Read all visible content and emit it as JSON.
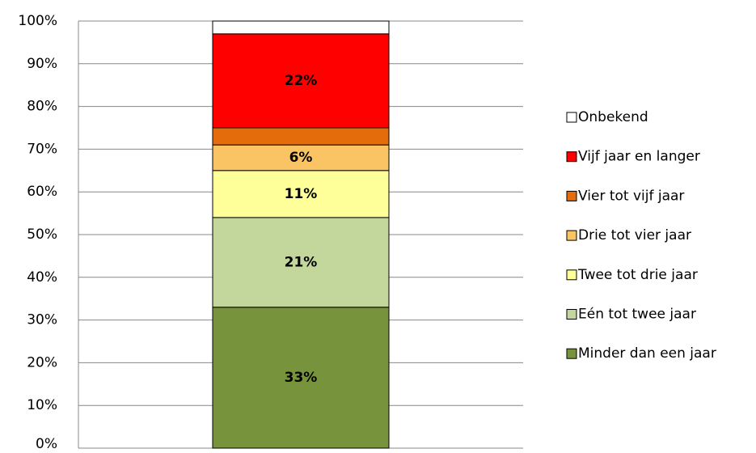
{
  "chart_data": {
    "type": "stacked-bar",
    "categories": [
      null
    ],
    "series": [
      {
        "name": "Minder dan een jaar",
        "color": "#77933c",
        "values": [
          33
        ],
        "value_labels": [
          "33%"
        ]
      },
      {
        "name": "Eén tot twee jaar",
        "color": "#c3d69b",
        "values": [
          21
        ],
        "value_labels": [
          "21%"
        ]
      },
      {
        "name": "Twee tot drie jaar",
        "color": "#ffff99",
        "values": [
          11
        ],
        "value_labels": [
          "11%"
        ]
      },
      {
        "name": "Drie tot vier jaar",
        "color": "#fac465",
        "values": [
          6
        ],
        "value_labels": [
          "6%"
        ]
      },
      {
        "name": "Vier tot vijf jaar",
        "color": "#e46c0a",
        "values": [
          4
        ],
        "value_labels": [
          null
        ]
      },
      {
        "name": "Vijf jaar en langer",
        "color": "#ff0000",
        "values": [
          22
        ],
        "value_labels": [
          "22%"
        ]
      },
      {
        "name": "Onbekend",
        "color": "#ffffff",
        "values": [
          3
        ],
        "value_labels": [
          null
        ]
      }
    ],
    "ylim": [
      0,
      100
    ],
    "yticks": [
      {
        "value": 0,
        "label": "0%"
      },
      {
        "value": 10,
        "label": "10%"
      },
      {
        "value": 20,
        "label": "20%"
      },
      {
        "value": 30,
        "label": "30%"
      },
      {
        "value": 40,
        "label": "40%"
      },
      {
        "value": 50,
        "label": "50%"
      },
      {
        "value": 60,
        "label": "60%"
      },
      {
        "value": 70,
        "label": "70%"
      },
      {
        "value": 80,
        "label": "80%"
      },
      {
        "value": 90,
        "label": "90%"
      },
      {
        "value": 100,
        "label": "100%"
      }
    ],
    "grid": true,
    "legend": "right"
  }
}
